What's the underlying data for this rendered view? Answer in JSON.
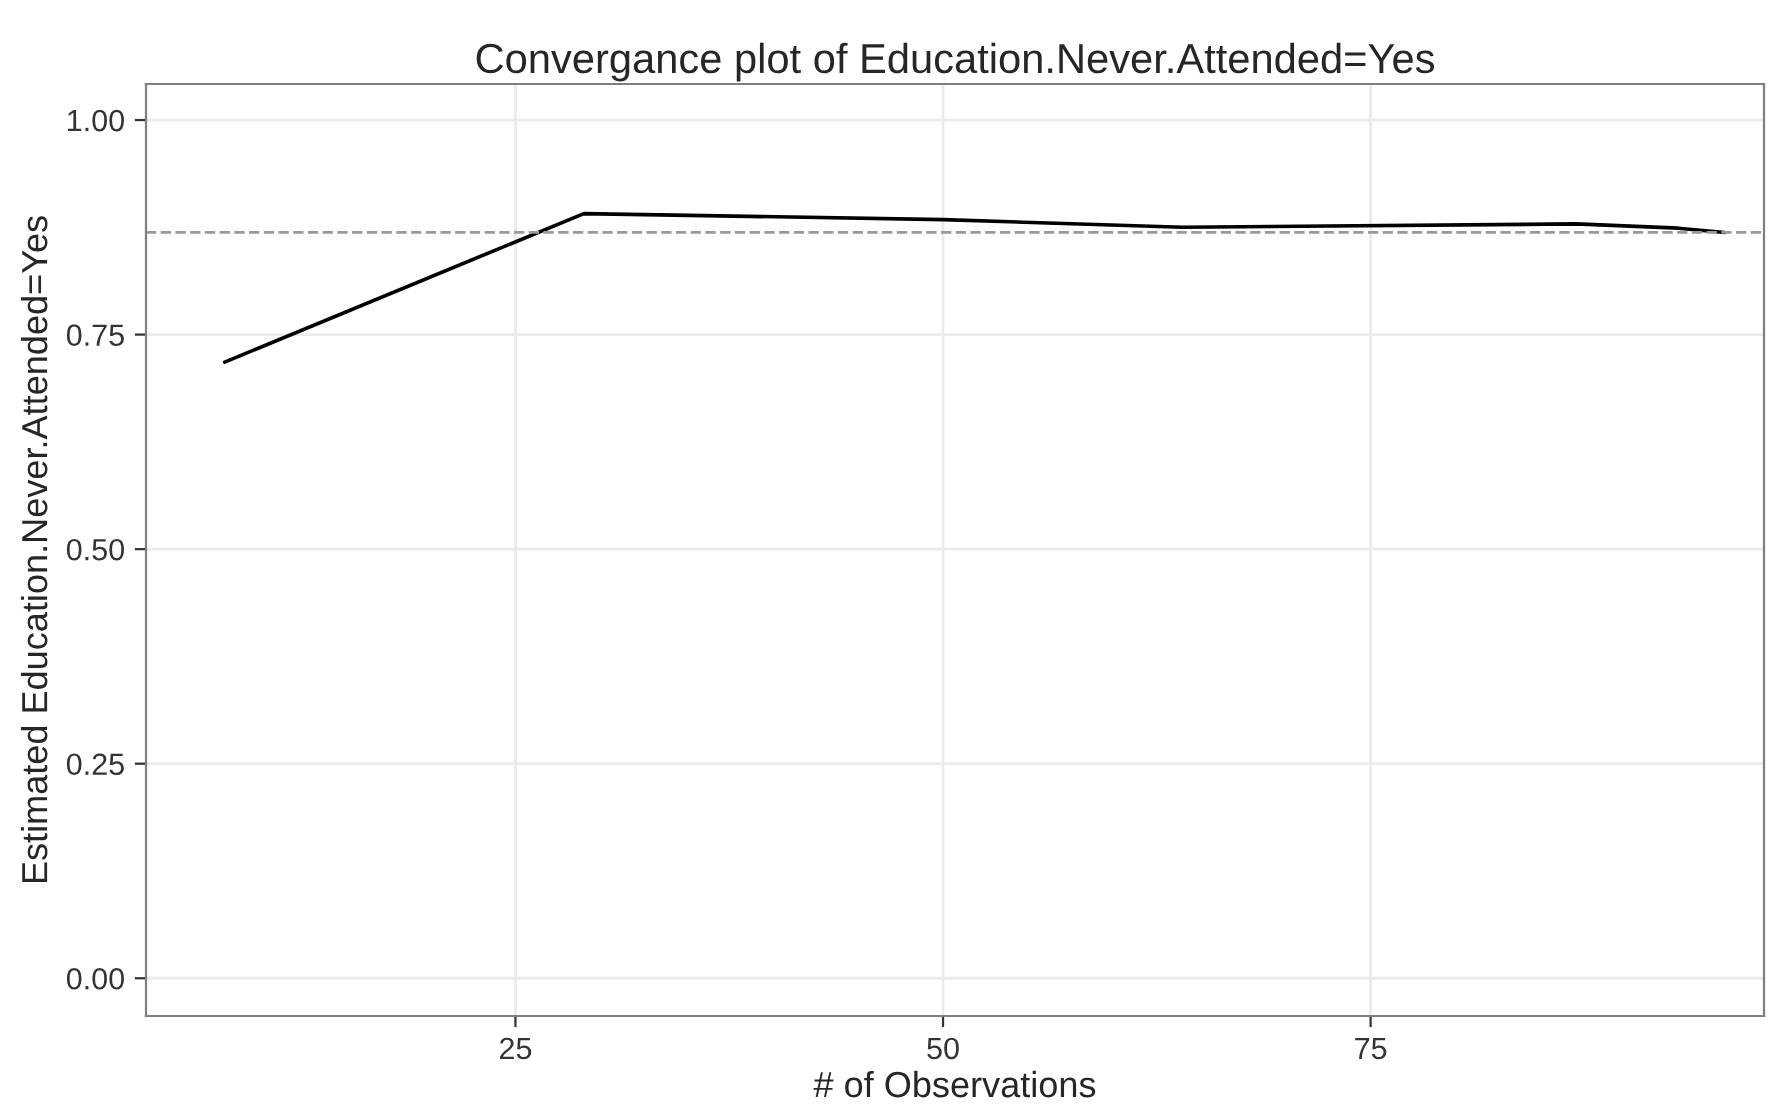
{
  "chart_data": {
    "type": "line",
    "title": "Convergance plot of Education.Never.Attended=Yes",
    "xlabel": "# of Observations",
    "ylabel": "Estimated Education.Never.Attended=Yes",
    "series": [
      {
        "color": "#000000",
        "x": [
          8,
          29,
          50,
          64,
          87,
          93,
          95.7
        ],
        "values": [
          0.718,
          0.891,
          0.884,
          0.875,
          0.879,
          0.874,
          0.869
        ]
      }
    ],
    "xlim": [
      3.4,
      98
    ],
    "ylim": [
      -0.044,
      1.042
    ],
    "xticks": [
      25,
      50,
      75
    ],
    "yticks": [
      {
        "value": 0,
        "label": "0.00"
      },
      {
        "value": 0.25,
        "label": "0.25"
      },
      {
        "value": 0.5,
        "label": "0.50"
      },
      {
        "value": 0.75,
        "label": "0.75"
      },
      {
        "value": 1,
        "label": "1.00"
      }
    ],
    "ref_lines": [
      {
        "axis": "y",
        "value": 0.869,
        "color": "#999999",
        "line_style": "dashed"
      }
    ],
    "grid": true,
    "line_style": "solid"
  }
}
